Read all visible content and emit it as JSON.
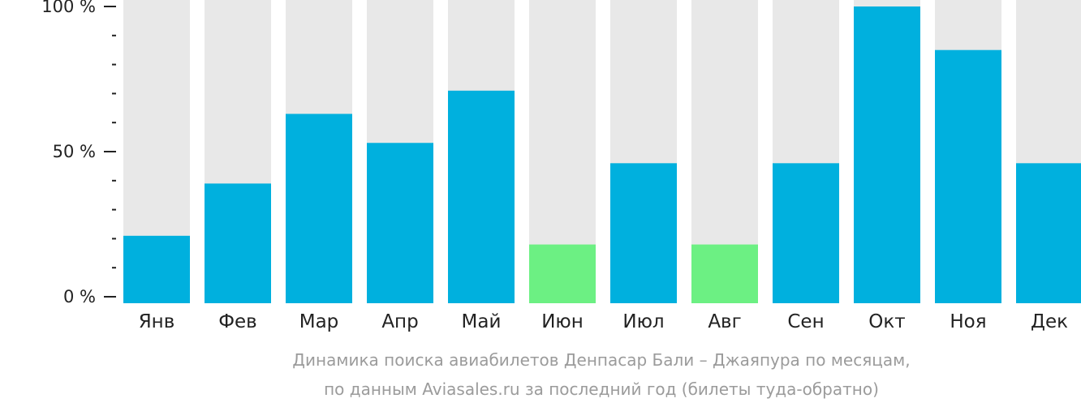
{
  "colors": {
    "background_bar": "#e8e8e8",
    "value_bar": "#00b0de",
    "low_bar": "#6cf083",
    "axis": "#222222",
    "caption": "#9b9b9b"
  },
  "caption": {
    "line1": "Динамика поиска авиабилетов Денпасар Бали – Джаяпура по месяцам,",
    "line2": "по данным Aviasales.ru за последний год (билеты туда-обратно)"
  },
  "chart_data": {
    "type": "bar",
    "categories": [
      "Янв",
      "Фев",
      "Мар",
      "Апр",
      "Май",
      "Июн",
      "Июл",
      "Авг",
      "Сен",
      "Окт",
      "Ноя",
      "Дек"
    ],
    "values": [
      21,
      39,
      63,
      53,
      71,
      18,
      46,
      18,
      46,
      100,
      85,
      46
    ],
    "bar_colors": [
      "value_bar",
      "value_bar",
      "value_bar",
      "value_bar",
      "value_bar",
      "low_bar",
      "value_bar",
      "low_bar",
      "value_bar",
      "value_bar",
      "value_bar",
      "value_bar"
    ],
    "ylim": [
      0,
      100
    ],
    "yticks": [
      0,
      50,
      100
    ],
    "ytick_labels": [
      "0 %",
      "50 %",
      "100 %"
    ],
    "minor_ticks_between_major": 4,
    "grid": false,
    "xlabel": "",
    "ylabel": "",
    "title": ""
  }
}
